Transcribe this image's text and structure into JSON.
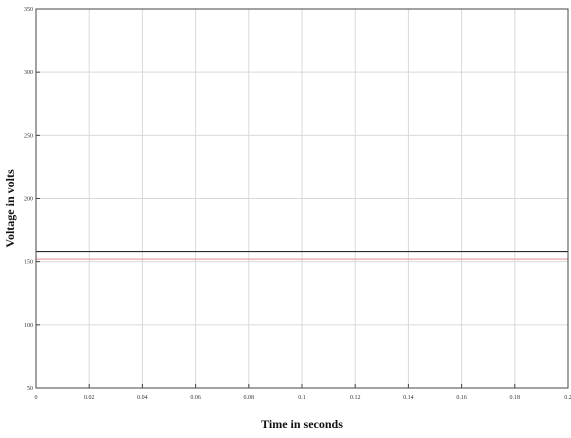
{
  "chart_data": {
    "type": "line",
    "title": "",
    "xlabel": "Time in seconds",
    "ylabel": "Voltage in volts",
    "xlim": [
      0,
      0.2
    ],
    "ylim": [
      50,
      350
    ],
    "grid": true,
    "legend": "none",
    "x_ticks": [
      0,
      0.02,
      0.04,
      0.06,
      0.08,
      0.1,
      0.12,
      0.14,
      0.16,
      0.18,
      0.2
    ],
    "x_tick_labels": [
      "0",
      "0.02",
      "0.04",
      "0.06",
      "0.08",
      "0.1",
      "0.12",
      "0.14",
      "0.16",
      "0.18",
      "0.2"
    ],
    "y_ticks": [
      50,
      100,
      150,
      200,
      250,
      300,
      350
    ],
    "y_tick_labels": [
      "50",
      "100",
      "150",
      "200",
      "250",
      "300",
      "350"
    ],
    "series": [
      {
        "x": [
          0,
          0.2
        ],
        "y": [
          158,
          158
        ],
        "color": "#2b2b2b"
      },
      {
        "x": [
          0,
          0.2
        ],
        "y": [
          152,
          152
        ],
        "color": "#e6a6a6"
      }
    ]
  }
}
